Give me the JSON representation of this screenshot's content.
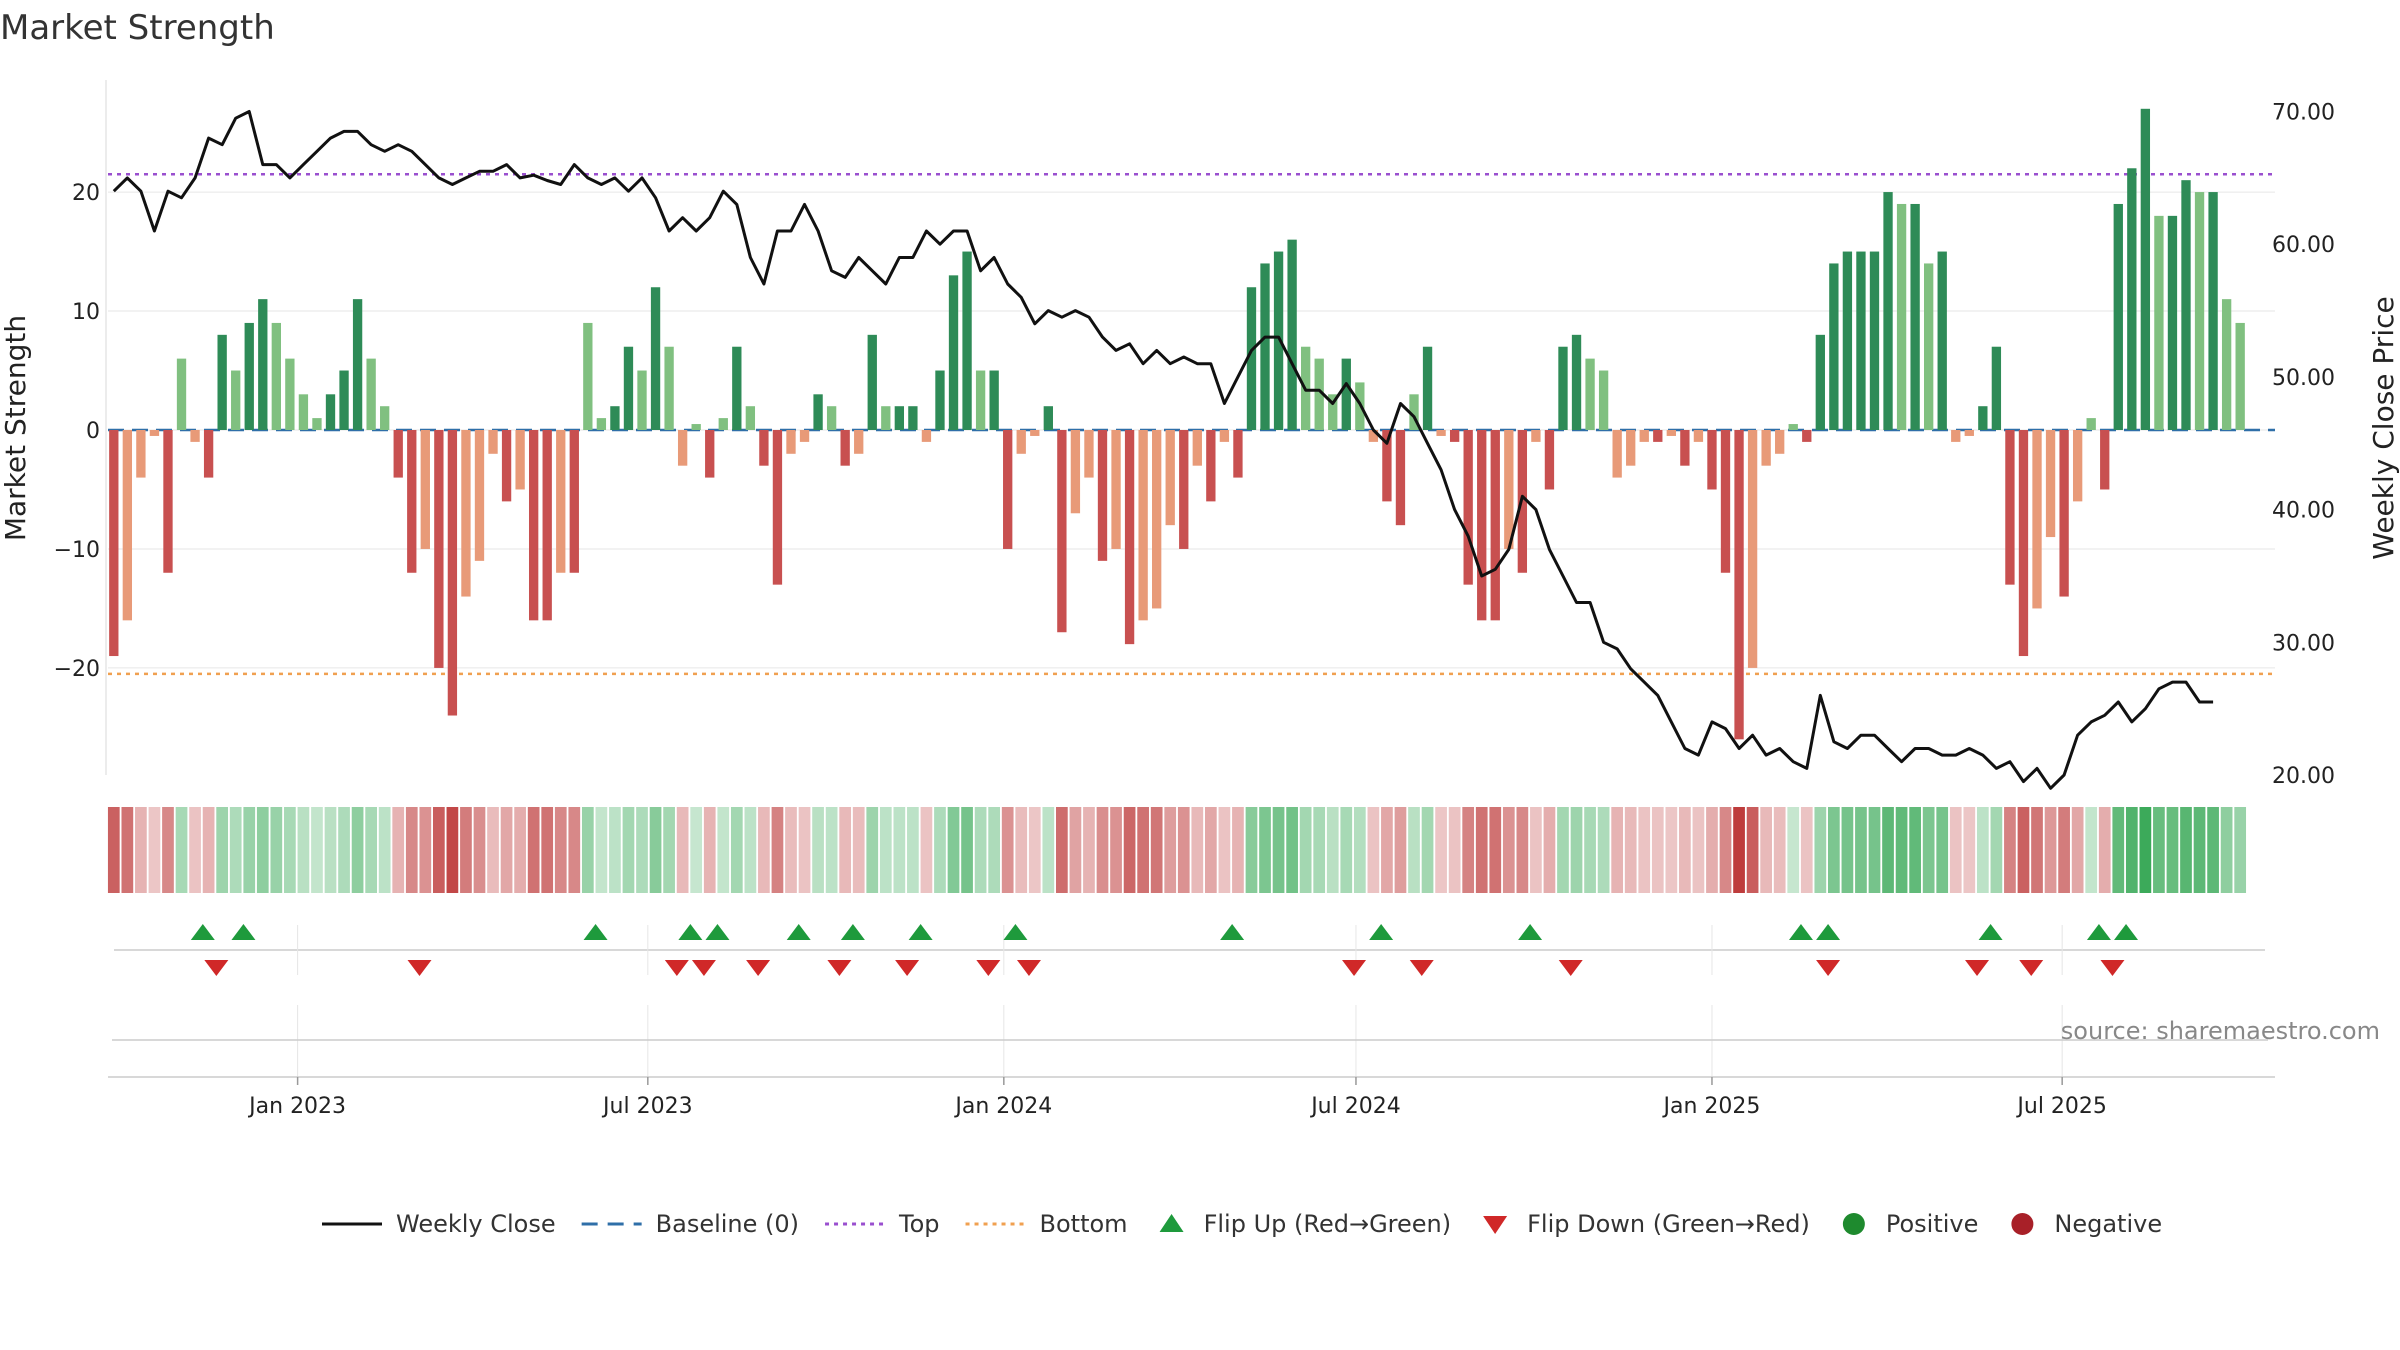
{
  "chart_data": {
    "type": "bar",
    "title": "Market Strength",
    "source": "source: sharemaestro.com",
    "y_left": {
      "label": "Market Strength",
      "range": [
        -29,
        29
      ],
      "ticks": [
        -20,
        -10,
        0,
        10,
        20
      ]
    },
    "y_right": {
      "label": "Weekly Close Price",
      "range": [
        20,
        72
      ],
      "ticks": [
        20,
        30,
        40,
        50,
        60,
        70
      ],
      "tick_labels": [
        "20.00",
        "30.00",
        "40.00",
        "50.00",
        "60.00",
        "70.00"
      ]
    },
    "x_axis": {
      "start": "2022-09-25",
      "end": "2025-10-19",
      "ticks": [
        {
          "date": "2023-01-01",
          "label": "Jan 2023"
        },
        {
          "date": "2023-07-01",
          "label": "Jul 2023"
        },
        {
          "date": "2024-01-01",
          "label": "Jan 2024"
        },
        {
          "date": "2024-07-01",
          "label": "Jul 2024"
        },
        {
          "date": "2025-01-01",
          "label": "Jan 2025"
        },
        {
          "date": "2025-07-01",
          "label": "Jul 2025"
        }
      ]
    },
    "reference_lines": {
      "top": 21.5,
      "bottom": -20.5,
      "baseline": 0
    },
    "strength_weekly": [
      -19,
      -16,
      -4,
      -0.5,
      -12,
      6,
      -1,
      -4,
      8,
      5,
      9,
      11,
      9,
      6,
      3,
      1,
      3,
      5,
      11,
      6,
      2,
      -4,
      -12,
      -10,
      -20,
      -24,
      -14,
      -11,
      -2,
      -6,
      -5,
      -16,
      -16,
      -12,
      -12,
      9,
      1,
      2,
      7,
      5,
      12,
      7,
      -3,
      0.5,
      -4,
      1,
      7,
      2,
      -3,
      -13,
      -2,
      -1,
      3,
      2,
      -3,
      -2,
      8,
      2,
      2,
      2,
      -1,
      5,
      13,
      15,
      5,
      5,
      -10,
      -2,
      -0.5,
      2,
      -17,
      -7,
      -4,
      -11,
      -10,
      -18,
      -16,
      -15,
      -8,
      -10,
      -3,
      -6,
      -1,
      -4,
      12,
      14,
      15,
      16,
      7,
      6,
      3,
      6,
      4,
      -1,
      -6,
      -8,
      3,
      7,
      -0.5,
      -1,
      -13,
      -16,
      -16,
      -10,
      -12,
      -1,
      -5,
      7,
      8,
      6,
      5,
      -4,
      -3,
      -1,
      -1,
      -0.5,
      -3,
      -1,
      -5,
      -12,
      -26,
      -20,
      -3,
      -2,
      0.5,
      -1,
      8,
      14,
      15,
      15,
      15,
      20,
      19,
      19,
      14,
      15,
      -1,
      -0.5,
      2,
      7,
      -13,
      -19,
      -15,
      -9,
      -14,
      -6,
      1,
      -5,
      19,
      22,
      27,
      18,
      18,
      21,
      20,
      20,
      11,
      9
    ],
    "close_weekly": [
      64,
      65,
      64,
      61,
      64,
      63.5,
      65,
      68,
      67.5,
      69.5,
      70,
      66,
      66,
      65,
      66,
      67,
      68,
      68.5,
      68.5,
      67.5,
      67,
      67.5,
      67,
      66,
      65,
      64.5,
      65,
      65.5,
      65.5,
      66,
      65,
      65.2,
      64.8,
      64.5,
      66,
      65,
      64.5,
      65,
      64,
      65,
      63.5,
      61,
      62,
      61,
      62,
      64,
      63,
      59,
      57,
      61,
      61,
      63,
      61,
      58,
      57.5,
      59,
      58,
      57,
      59,
      59,
      61,
      60,
      61,
      61,
      58,
      59,
      57,
      56,
      54,
      55,
      54.5,
      55,
      54.5,
      53,
      52,
      52.5,
      51,
      52,
      51,
      51.5,
      51,
      51,
      48,
      50,
      52,
      53,
      53,
      51,
      49,
      49,
      48,
      49.5,
      48,
      46,
      45,
      48,
      47,
      45,
      43,
      40,
      38,
      35,
      35.5,
      37,
      41,
      40,
      37,
      35,
      33,
      33,
      30,
      29.5,
      28,
      27,
      26,
      24,
      22,
      21.5,
      24,
      23.5,
      22,
      23,
      21.5,
      22,
      21,
      20.5,
      26,
      22.5,
      22,
      23,
      23,
      22,
      21,
      22,
      22,
      21.5,
      21.5,
      22,
      21.5,
      20.5,
      21,
      19.5,
      20.5,
      19,
      20,
      23,
      24,
      24.5,
      25.5,
      24,
      25,
      26.5,
      27,
      27,
      25.5,
      25.5
    ],
    "state_strip": {
      "description": "per-week colour band: green = positive, red = negative, intensity = magnitude"
    },
    "flip_up_dates": [
      "2022-11-13",
      "2022-12-04",
      "2023-06-04",
      "2023-07-23",
      "2023-08-06",
      "2023-09-17",
      "2023-10-15",
      "2023-11-19",
      "2024-01-07",
      "2024-04-28",
      "2024-07-14",
      "2024-09-29",
      "2025-02-16",
      "2025-03-02",
      "2025-05-25",
      "2025-07-20",
      "2025-08-03"
    ],
    "flip_down_dates": [
      "2022-11-20",
      "2023-03-05",
      "2023-07-16",
      "2023-07-30",
      "2023-08-27",
      "2023-10-08",
      "2023-11-12",
      "2023-12-24",
      "2024-01-14",
      "2024-06-30",
      "2024-08-04",
      "2024-10-20",
      "2025-03-02",
      "2025-05-18",
      "2025-06-15",
      "2025-07-27"
    ],
    "legend": [
      {
        "label": "Weekly Close",
        "kind": "line",
        "color": "#111111"
      },
      {
        "label": "Baseline (0)",
        "kind": "dash",
        "color": "#2f6fa8"
      },
      {
        "label": "Top",
        "kind": "dotted",
        "color": "#9a4fcf"
      },
      {
        "label": "Bottom",
        "kind": "dotted",
        "color": "#f0a050"
      },
      {
        "label": "Flip Up (Red→Green)",
        "kind": "triangle-up",
        "color": "#1e9a3c"
      },
      {
        "label": "Flip Down (Green→Red)",
        "kind": "triangle-down",
        "color": "#d02828"
      },
      {
        "label": "Positive",
        "kind": "dot",
        "color": "#1e8a2e"
      },
      {
        "label": "Negative",
        "kind": "dot",
        "color": "#a82028"
      }
    ],
    "colors": {
      "positive_strong": "#2e8b57",
      "positive_weak": "#80c080",
      "negative_strong": "#c85050",
      "negative_weak": "#e89a78",
      "close_line": "#111111",
      "grid": "#e6e6e6"
    }
  }
}
